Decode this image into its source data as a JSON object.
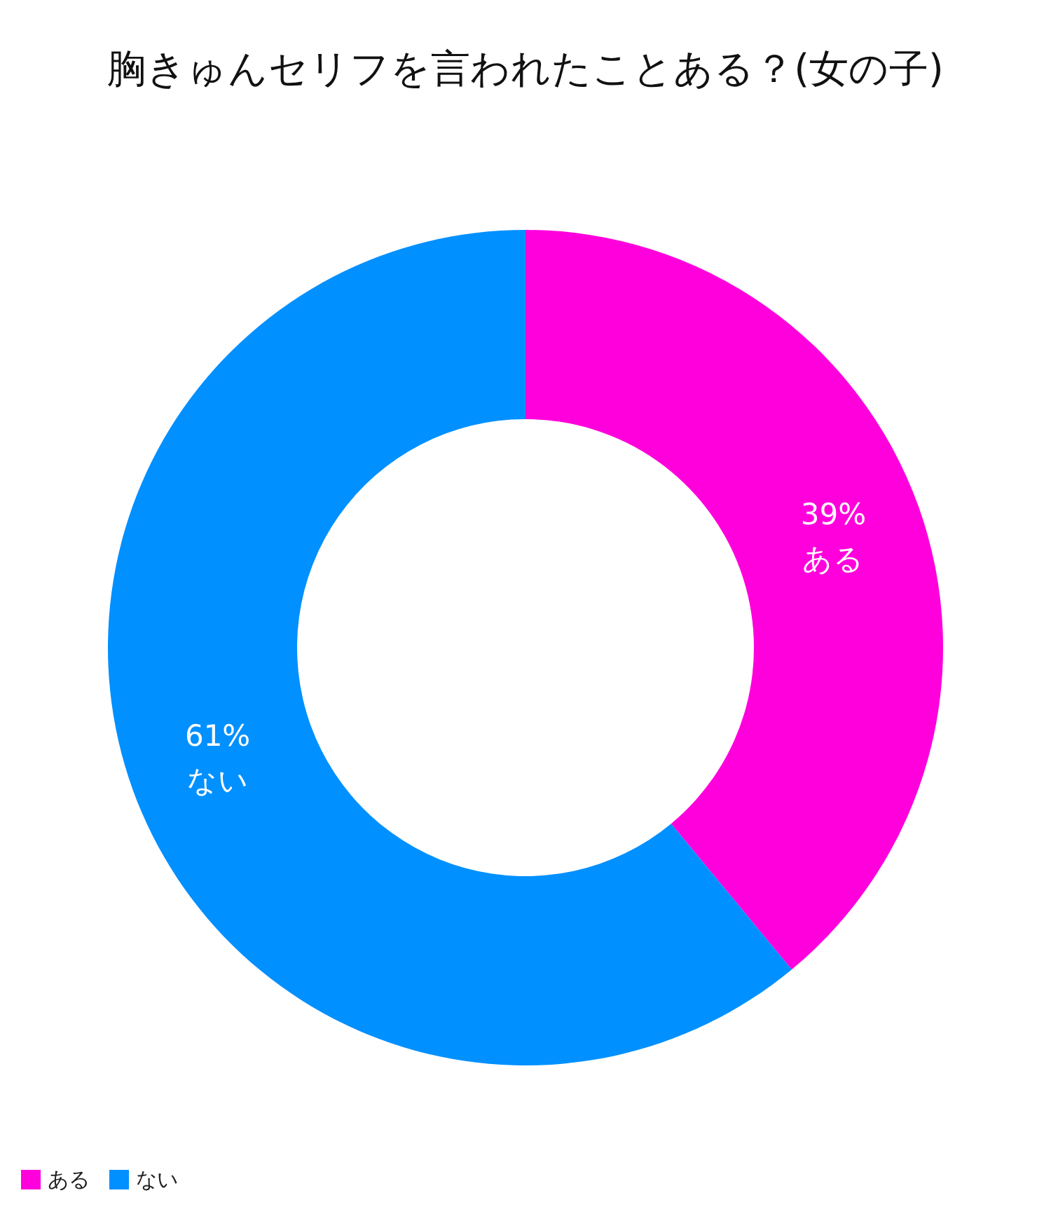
{
  "chart_data": {
    "type": "donut",
    "title": "胸きゅんセリフを言われたことある？(女の子)",
    "categories": [
      "ある",
      "ない"
    ],
    "values": [
      39,
      61
    ],
    "value_labels": [
      "39%",
      "61%"
    ],
    "colors": [
      "#ff00dd",
      "#0090ff"
    ],
    "legend": "bottom left"
  }
}
